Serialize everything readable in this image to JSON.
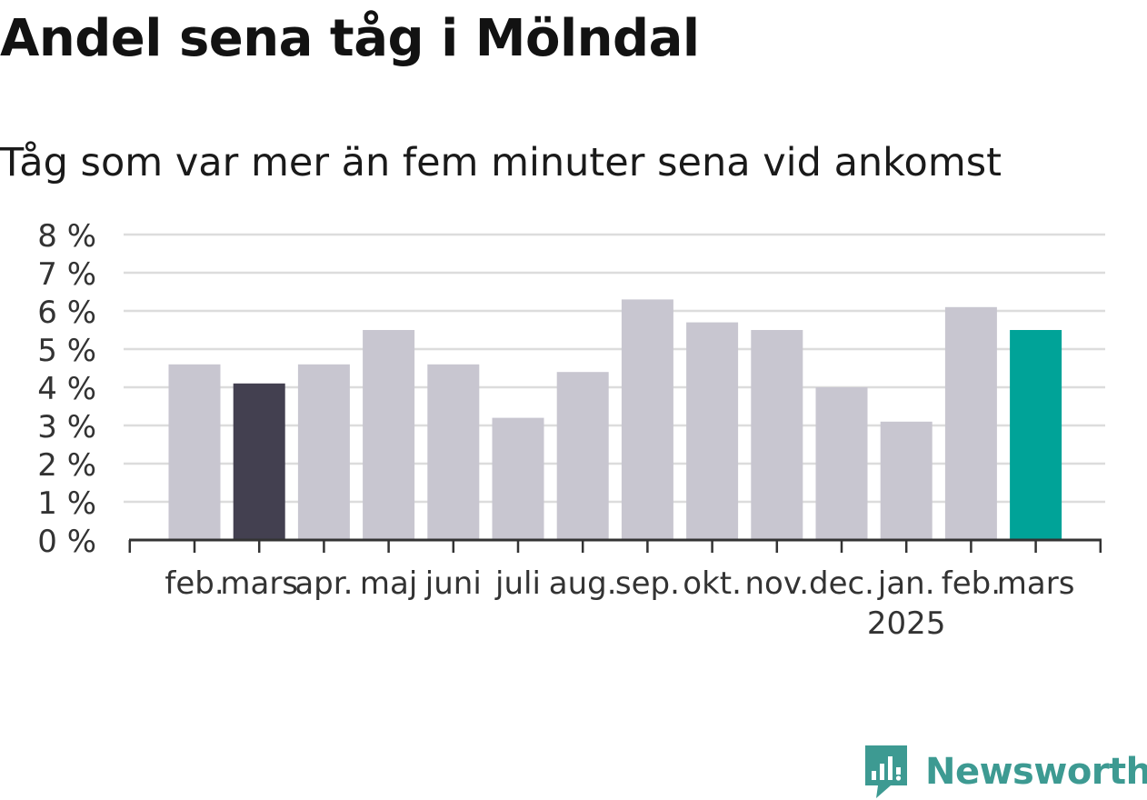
{
  "title": "Andel sena tåg i Mölndal",
  "subtitle": "Tåg som var mer än fem minuter sena vid ankomst",
  "brand": {
    "name": "Newsworthy",
    "color": "#3d9a92"
  },
  "colors": {
    "default_bar": "#c8c6d0",
    "previous_bar": "#434050",
    "current_bar": "#00a398"
  },
  "chart_data": {
    "type": "bar",
    "categories": [
      "feb.",
      "mars",
      "apr.",
      "maj",
      "juni",
      "juli",
      "aug.",
      "sep.",
      "okt.",
      "nov.",
      "dec.",
      "jan.",
      "feb.",
      "mars"
    ],
    "year_labels": [
      "",
      "",
      "",
      "",
      "",
      "",
      "",
      "",
      "",
      "",
      "",
      "2025",
      "",
      ""
    ],
    "values": [
      4.6,
      4.1,
      4.6,
      5.5,
      4.6,
      3.2,
      4.4,
      6.3,
      5.7,
      5.5,
      4.0,
      3.1,
      6.1,
      5.5
    ],
    "highlight": [
      "default",
      "previous",
      "default",
      "default",
      "default",
      "default",
      "default",
      "default",
      "default",
      "default",
      "default",
      "default",
      "default",
      "current"
    ],
    "ylim": [
      0,
      8
    ],
    "yticks": [
      0,
      1,
      2,
      3,
      4,
      5,
      6,
      7,
      8
    ],
    "ytick_labels": [
      "0 %",
      "1 %",
      "2 %",
      "3 %",
      "4 %",
      "5 %",
      "6 %",
      "7 %",
      "8 %"
    ],
    "grid": true
  }
}
